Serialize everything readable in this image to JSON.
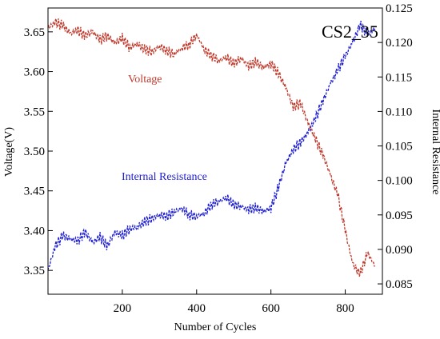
{
  "chart_data": {
    "type": "line",
    "title": "CS2_35",
    "xlabel": "Number of Cycles",
    "ylabel_left": "Voltage(V)",
    "ylabel_right": "Internal Resistance",
    "xlim": [
      0,
      900
    ],
    "ylim_left": [
      3.32,
      3.68
    ],
    "ylim_right": [
      0.0835,
      0.125
    ],
    "x_ticks": [
      200,
      400,
      600,
      800
    ],
    "x_tick_labels": [
      "200",
      "400",
      "600",
      "800"
    ],
    "y_left_ticks": [
      3.35,
      3.4,
      3.45,
      3.5,
      3.55,
      3.6,
      3.65
    ],
    "y_left_tick_labels": [
      "3.35",
      "3.40",
      "3.45",
      "3.50",
      "3.55",
      "3.60",
      "3.65"
    ],
    "y_right_ticks": [
      0.085,
      0.09,
      0.095,
      0.1,
      0.105,
      0.11,
      0.115,
      0.12,
      0.125
    ],
    "y_right_tick_labels": [
      "0.085",
      "0.090",
      "0.095",
      "0.100",
      "0.105",
      "0.110",
      "0.115",
      "0.120",
      "0.125"
    ],
    "grid": false,
    "legend": "inline annotations",
    "series": [
      {
        "name": "Voltage",
        "axis": "left",
        "color": "#c0392b",
        "x": [
          0,
          20,
          40,
          60,
          80,
          100,
          120,
          140,
          160,
          180,
          200,
          220,
          240,
          260,
          280,
          300,
          320,
          340,
          360,
          380,
          400,
          420,
          440,
          460,
          480,
          500,
          520,
          540,
          560,
          580,
          600,
          620,
          640,
          660,
          680,
          700,
          720,
          740,
          760,
          780,
          800,
          820,
          840,
          860,
          880
        ],
        "values": [
          3.655,
          3.662,
          3.658,
          3.648,
          3.652,
          3.645,
          3.65,
          3.64,
          3.645,
          3.636,
          3.642,
          3.63,
          3.635,
          3.628,
          3.625,
          3.632,
          3.626,
          3.622,
          3.63,
          3.634,
          3.646,
          3.628,
          3.62,
          3.614,
          3.618,
          3.61,
          3.617,
          3.607,
          3.612,
          3.605,
          3.61,
          3.598,
          3.58,
          3.556,
          3.56,
          3.535,
          3.515,
          3.495,
          3.47,
          3.445,
          3.4,
          3.358,
          3.345,
          3.372,
          3.355
        ]
      },
      {
        "name": "Internal Resistance",
        "axis": "right",
        "color": "#1f1fd1",
        "x": [
          0,
          20,
          40,
          60,
          80,
          100,
          120,
          140,
          160,
          180,
          200,
          220,
          240,
          260,
          280,
          300,
          320,
          340,
          360,
          380,
          400,
          420,
          440,
          460,
          480,
          500,
          520,
          540,
          560,
          580,
          600,
          620,
          640,
          660,
          680,
          700,
          720,
          740,
          760,
          780,
          800,
          820,
          840,
          860,
          880
        ],
        "values": [
          0.087,
          0.0905,
          0.092,
          0.0915,
          0.0912,
          0.0925,
          0.091,
          0.0918,
          0.0905,
          0.0925,
          0.092,
          0.093,
          0.0932,
          0.094,
          0.0945,
          0.095,
          0.0948,
          0.0955,
          0.096,
          0.095,
          0.0948,
          0.0952,
          0.0965,
          0.097,
          0.0975,
          0.0965,
          0.0962,
          0.0958,
          0.096,
          0.0955,
          0.096,
          0.099,
          0.1025,
          0.1045,
          0.1055,
          0.107,
          0.109,
          0.1115,
          0.114,
          0.116,
          0.118,
          0.12,
          0.1225,
          0.1212,
          0.122
        ]
      }
    ],
    "annotations": [
      {
        "text": "Voltage",
        "series": "Voltage"
      },
      {
        "text": "Internal Resistance",
        "series": "Internal Resistance"
      }
    ]
  }
}
